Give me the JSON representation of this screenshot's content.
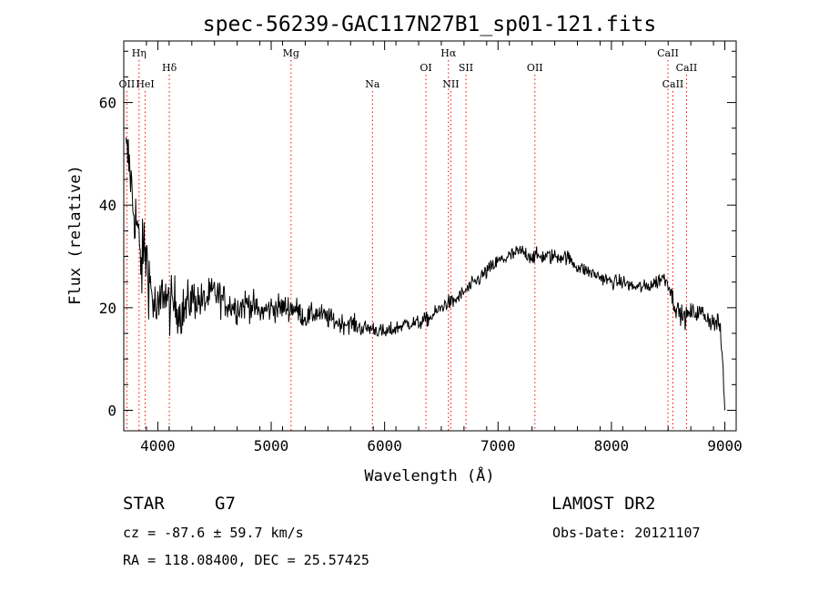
{
  "chart_data": {
    "type": "line",
    "title": "spec-56239-GAC117N27B1_sp01-121.fits",
    "xlabel": "Wavelength (Å)",
    "ylabel": "Flux (relative)",
    "xlim": [
      3700,
      9100
    ],
    "ylim": [
      -4,
      72
    ],
    "xticks": [
      4000,
      5000,
      6000,
      7000,
      8000,
      9000
    ],
    "yticks": [
      0,
      20,
      40,
      60
    ],
    "grid": false,
    "series": [
      {
        "x": [
          3720,
          3740,
          3760,
          3780,
          3800,
          3820,
          3840,
          3860,
          3880,
          3900,
          3950,
          4000,
          4050,
          4100,
          4150,
          4200,
          4250,
          4300,
          4400,
          4500,
          4600,
          4700,
          4800,
          4900,
          5000,
          5100,
          5200,
          5300,
          5400,
          5500,
          5600,
          5700,
          5800,
          5900,
          6000,
          6100,
          6200,
          6300,
          6400,
          6500,
          6550,
          6600,
          6700,
          6800,
          6900,
          7000,
          7100,
          7200,
          7300,
          7400,
          7500,
          7600,
          7700,
          7800,
          7900,
          8000,
          8100,
          8200,
          8300,
          8400,
          8450,
          8500,
          8550,
          8600,
          8650,
          8700,
          8800,
          8900,
          8950,
          8980,
          9000
        ],
        "y": [
          50,
          49,
          46,
          40,
          38,
          36,
          30,
          28,
          32,
          30,
          22,
          18,
          24,
          20,
          21,
          19,
          20,
          22,
          21,
          23,
          21,
          20,
          21,
          19,
          20,
          20,
          20,
          18,
          19,
          18,
          17,
          17,
          16,
          16,
          15,
          16,
          17,
          17,
          18,
          20,
          21,
          21,
          23,
          25,
          27,
          29,
          30,
          31,
          30,
          30,
          30,
          30,
          28,
          27,
          26,
          25,
          25,
          24,
          24,
          25,
          26,
          25,
          21,
          19,
          18,
          19,
          19,
          17,
          17,
          10,
          0
        ],
        "noise_amplitude": [
          6,
          6,
          6,
          6,
          6,
          7,
          7,
          7,
          7,
          7,
          6,
          6,
          5,
          5,
          5,
          4.5,
          4.5,
          4,
          3.5,
          3.5,
          3,
          3,
          3,
          2.5,
          2.5,
          2.5,
          2.5,
          2,
          2,
          2,
          1.8,
          1.8,
          1.6,
          1.5,
          1.5,
          1.4,
          1.4,
          1.4,
          1.4,
          1.4,
          1.4,
          1.4,
          1.4,
          1.4,
          1.5,
          1.5,
          1.5,
          1.5,
          1.5,
          1.5,
          1.5,
          1.4,
          1.4,
          1.3,
          1.3,
          1.3,
          1.3,
          1.3,
          1.3,
          1.5,
          1.5,
          1.5,
          1.8,
          1.8,
          1.8,
          1.8,
          1.8,
          2,
          2,
          2,
          2
        ]
      }
    ],
    "line_markers": [
      {
        "label": "OII",
        "x": 3727,
        "row": 3
      },
      {
        "label": "Hη",
        "x": 3835,
        "row": 1
      },
      {
        "label": "HeI",
        "x": 3889,
        "row": 3
      },
      {
        "label": "Hδ",
        "x": 4102,
        "row": 2
      },
      {
        "label": "Mg",
        "x": 5175,
        "row": 1
      },
      {
        "label": "Na",
        "x": 5893,
        "row": 3
      },
      {
        "label": "OI",
        "x": 6364,
        "row": 2
      },
      {
        "label": "Hα",
        "x": 6563,
        "row": 1
      },
      {
        "label": "NII",
        "x": 6584,
        "row": 3
      },
      {
        "label": "SII",
        "x": 6717,
        "row": 2
      },
      {
        "label": "OII",
        "x": 7325,
        "row": 2
      },
      {
        "label": "CaII",
        "x": 8498,
        "row": 1
      },
      {
        "label": "CaII",
        "x": 8542,
        "row": 3
      },
      {
        "label": "CaII",
        "x": 8662,
        "row": 2
      }
    ],
    "marker_color": "#ff0000",
    "line_color": "#000000"
  },
  "info": {
    "object_class": "STAR",
    "subclass": "G7",
    "survey": "LAMOST DR2",
    "redshift": "cz = -87.6 ± 59.7 km/s",
    "obs_date": "Obs-Date: 20121107",
    "coords": "RA = 118.08400, DEC =  25.57425"
  }
}
